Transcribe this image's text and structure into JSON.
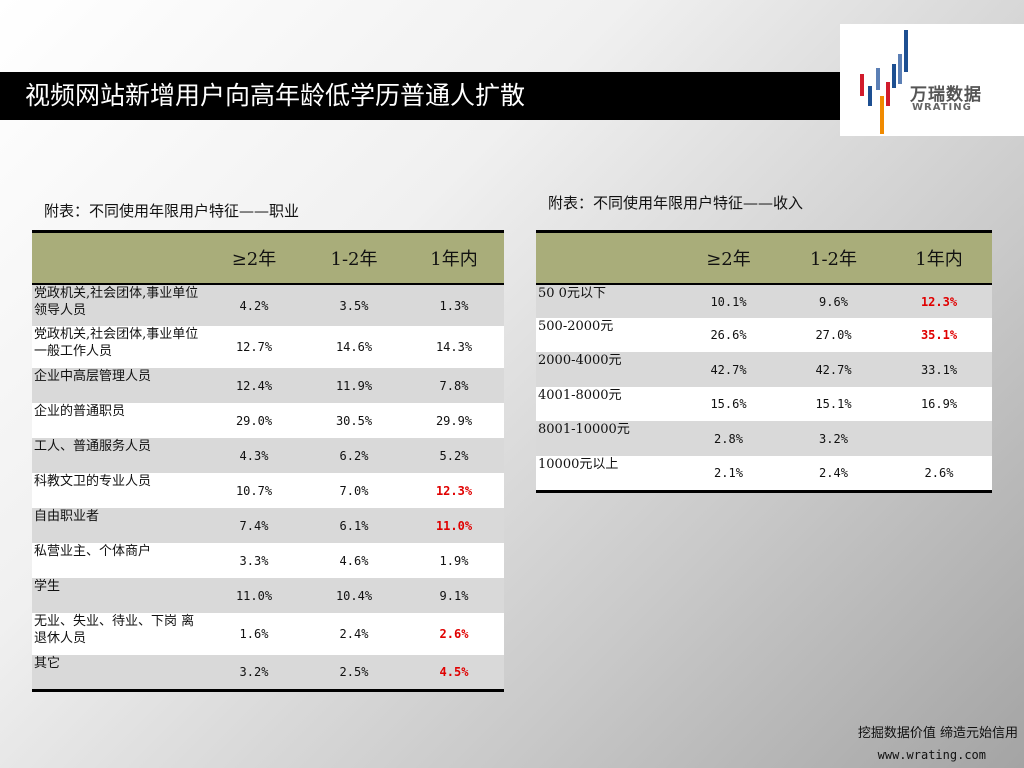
{
  "title": "视频网站新增用户向高年龄低学历普通人扩散",
  "logo": {
    "cn": "万瑞数据",
    "en": "WRATING"
  },
  "colors": {
    "header": "#a9ad7a",
    "stripe": "#d9d9d9",
    "highlight": "#e00000",
    "title_bg": "#000000"
  },
  "table_occupation": {
    "caption": "附表：不同使用年限用户特征——职业",
    "headers": [
      "",
      "≥2年",
      "1-2年",
      "1年内"
    ],
    "rows": [
      {
        "label": "党政机关,社会团体,事业单位领导人员",
        "values": [
          "4.2%",
          "3.5%",
          "1.3%"
        ],
        "highlight": [
          false,
          false,
          false
        ]
      },
      {
        "label": "党政机关,社会团体,事业单位一般工作人员",
        "values": [
          "12.7%",
          "14.6%",
          "14.3%"
        ],
        "highlight": [
          false,
          false,
          false
        ]
      },
      {
        "label": "企业中高层管理人员",
        "values": [
          "12.4%",
          "11.9%",
          "7.8%"
        ],
        "highlight": [
          false,
          false,
          false
        ]
      },
      {
        "label": "企业的普通职员",
        "values": [
          "29.0%",
          "30.5%",
          "29.9%"
        ],
        "highlight": [
          false,
          false,
          false
        ]
      },
      {
        "label": "工人、普通服务人员",
        "values": [
          "4.3%",
          "6.2%",
          "5.2%"
        ],
        "highlight": [
          false,
          false,
          false
        ]
      },
      {
        "label": "科教文卫的专业人员",
        "values": [
          "10.7%",
          "7.0%",
          "12.3%"
        ],
        "highlight": [
          false,
          false,
          true
        ]
      },
      {
        "label": "自由职业者",
        "values": [
          "7.4%",
          "6.1%",
          "11.0%"
        ],
        "highlight": [
          false,
          false,
          true
        ]
      },
      {
        "label": "私营业主、个体商户",
        "values": [
          "3.3%",
          "4.6%",
          "1.9%"
        ],
        "highlight": [
          false,
          false,
          false
        ]
      },
      {
        "label": "学生",
        "values": [
          "11.0%",
          "10.4%",
          "9.1%"
        ],
        "highlight": [
          false,
          false,
          false
        ]
      },
      {
        "label": "无业、失业、待业、下岗 离退休人员",
        "values": [
          "1.6%",
          "2.4%",
          "2.6%"
        ],
        "highlight": [
          false,
          false,
          true
        ]
      },
      {
        "label": "其它",
        "values": [
          "3.2%",
          "2.5%",
          "4.5%"
        ],
        "highlight": [
          false,
          false,
          true
        ]
      }
    ]
  },
  "table_income": {
    "caption": "附表：不同使用年限用户特征——收入",
    "headers": [
      "",
      "≥2年",
      "1-2年",
      "1年内"
    ],
    "rows": [
      {
        "label": "50 0元以下",
        "values": [
          "10.1%",
          "9.6%",
          "12.3%"
        ],
        "highlight": [
          false,
          false,
          true
        ]
      },
      {
        "label": "500-2000元",
        "values": [
          "26.6%",
          "27.0%",
          "35.1%"
        ],
        "highlight": [
          false,
          false,
          true
        ]
      },
      {
        "label": "2000-4000元",
        "values": [
          "42.7%",
          "42.7%",
          "33.1%"
        ],
        "highlight": [
          false,
          false,
          false
        ]
      },
      {
        "label": "4001-8000元",
        "values": [
          "15.6%",
          "15.1%",
          "16.9%"
        ],
        "highlight": [
          false,
          false,
          false
        ]
      },
      {
        "label": "8001-10000元",
        "values": [
          "2.8%",
          "3.2%",
          ""
        ],
        "highlight": [
          false,
          false,
          false
        ]
      },
      {
        "label": "10000元以上",
        "values": [
          "2.1%",
          "2.4%",
          "2.6%"
        ],
        "highlight": [
          false,
          false,
          false
        ]
      }
    ]
  },
  "footer": {
    "slogan": "挖掘数据价值    缔造元始信用",
    "url": "www.wrating.com"
  }
}
